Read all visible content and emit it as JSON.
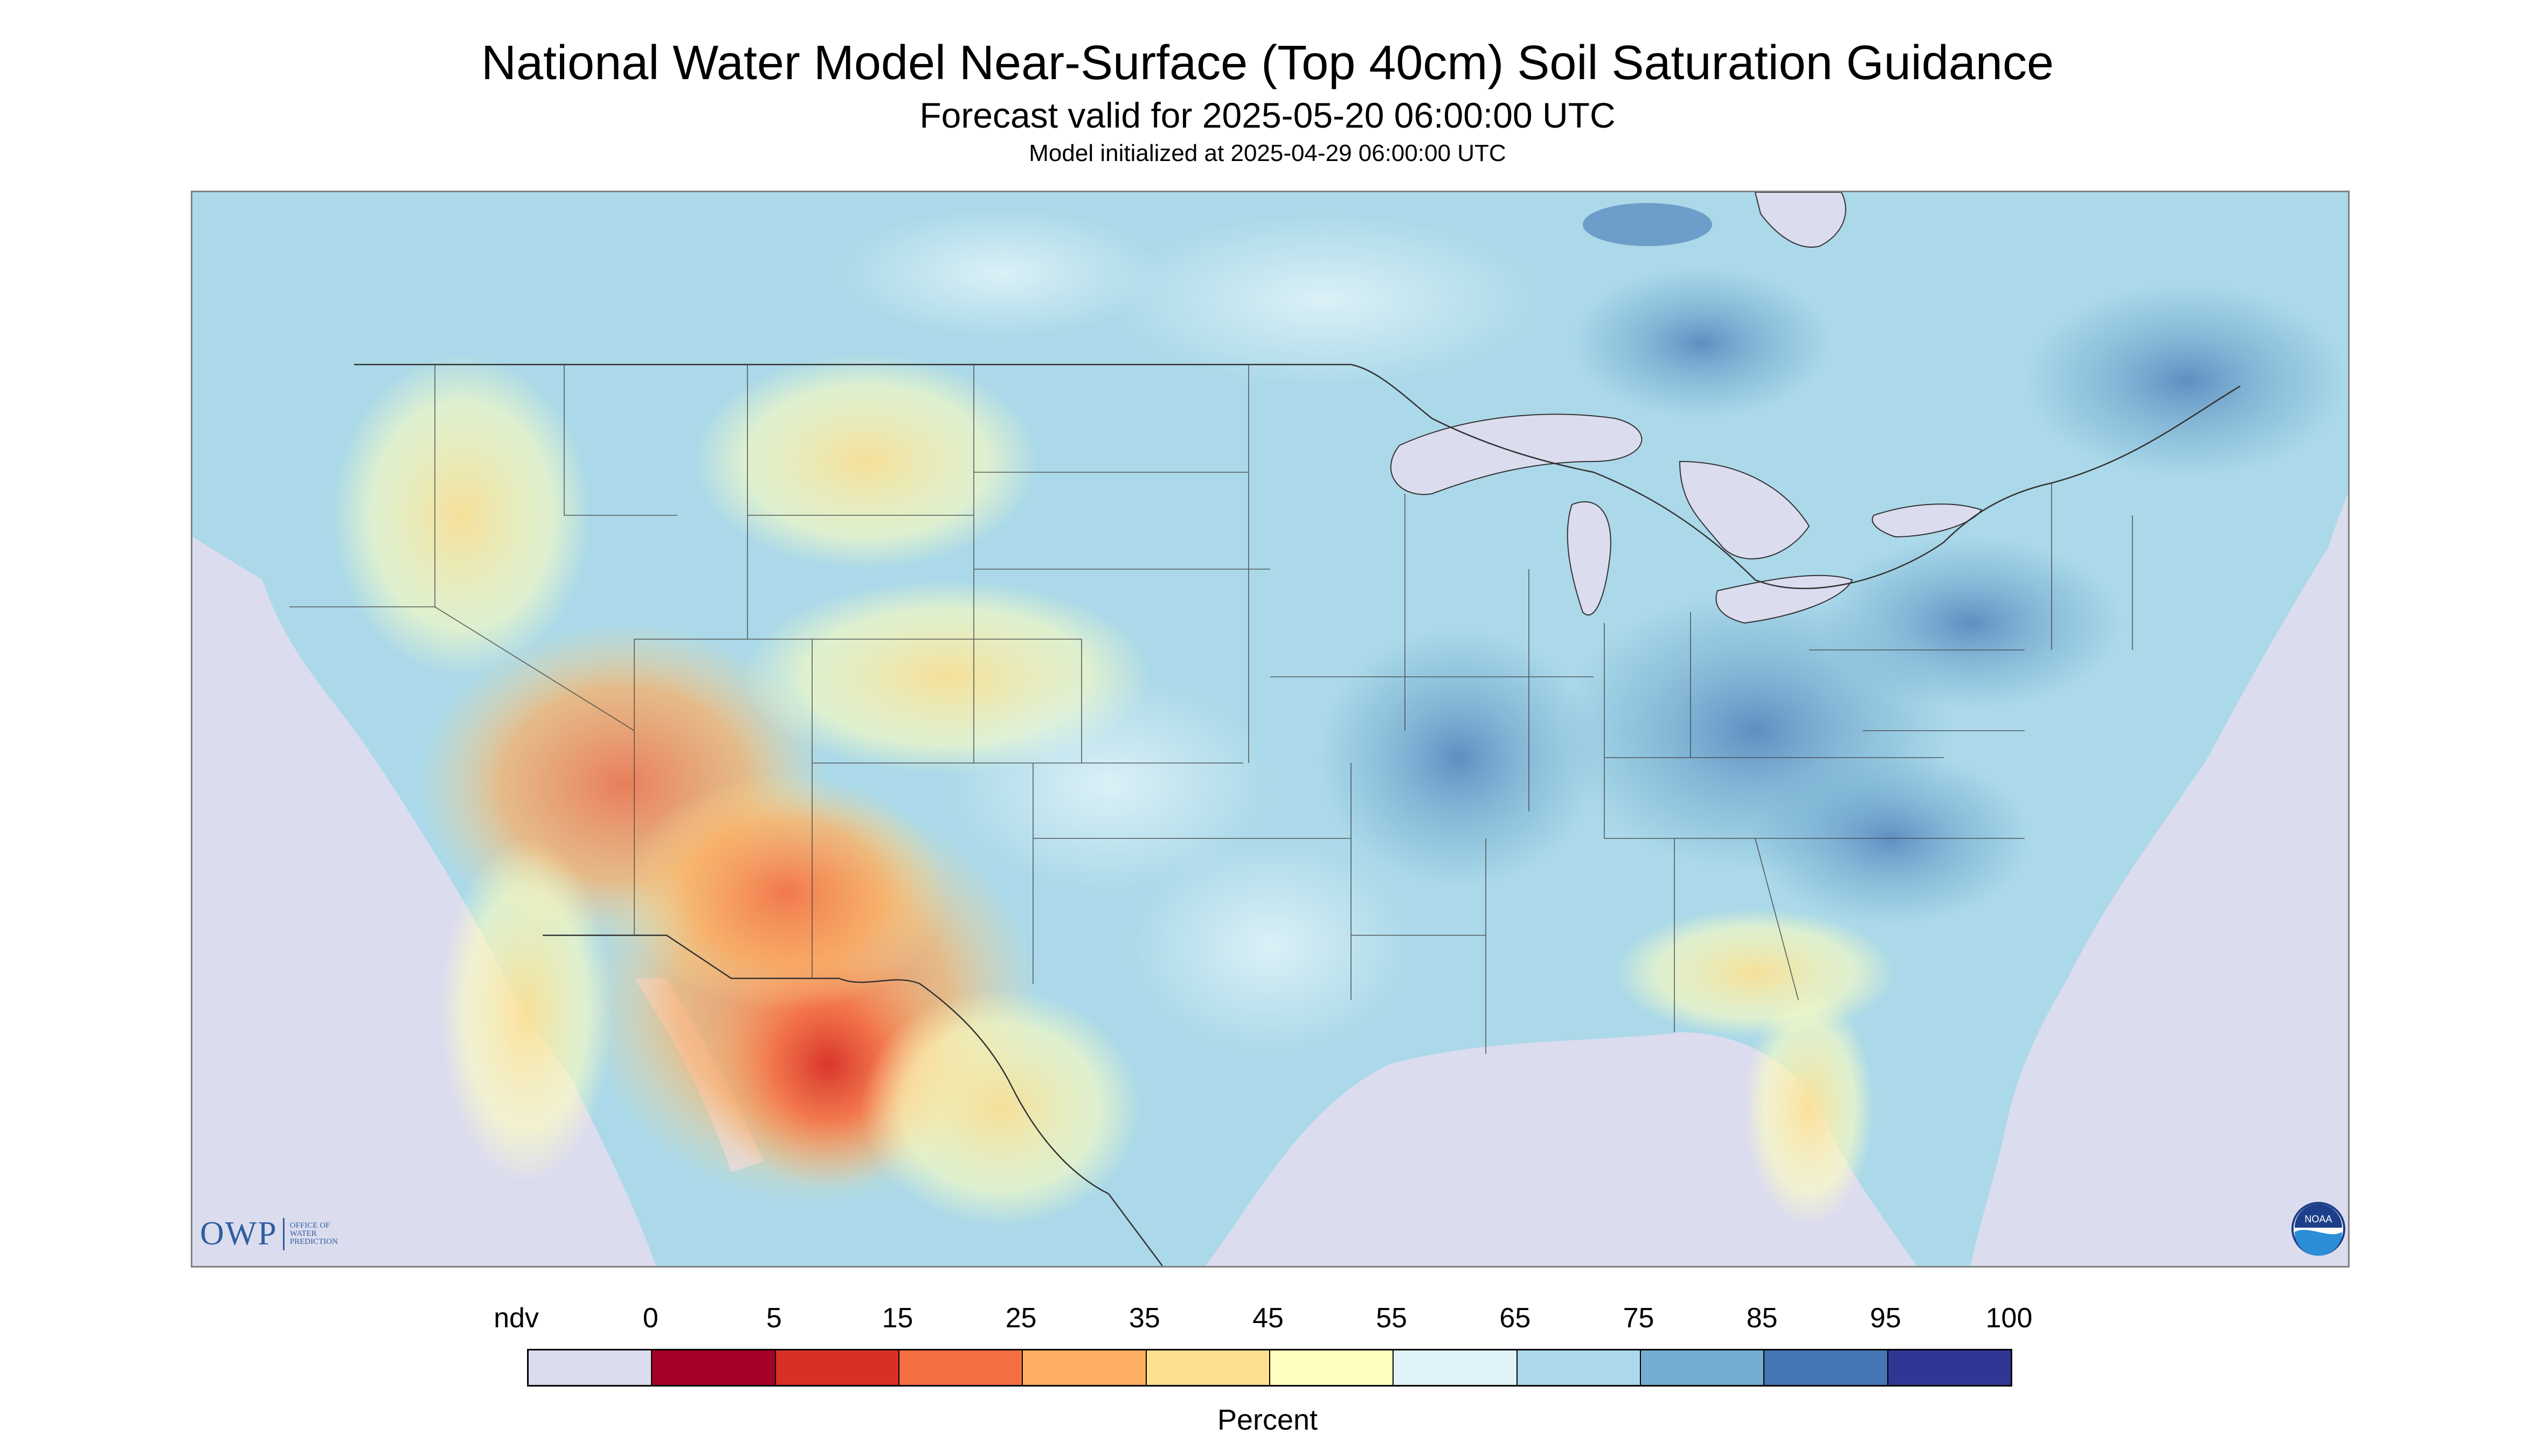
{
  "header": {
    "title": "National Water Model Near-Surface (Top 40cm) Soil Saturation Guidance",
    "subtitle": "Forecast valid for 2025-05-20 06:00:00 UTC",
    "init": "Model initialized at 2025-04-29 06:00:00 UTC"
  },
  "logos": {
    "owp_main": "OWP",
    "owp_sub": [
      "OFFICE OF",
      "WATER",
      "PREDICTION"
    ],
    "noaa": "NOAA"
  },
  "legend": {
    "unit": "Percent",
    "labels": [
      "ndv",
      "0",
      "5",
      "15",
      "25",
      "35",
      "45",
      "55",
      "65",
      "75",
      "85",
      "95",
      "100"
    ],
    "colors": [
      "#dcdcef",
      "#a50026",
      "#d73027",
      "#f46d43",
      "#fdae61",
      "#fee090",
      "#ffffbf",
      "#e0f3f8",
      "#abd9e9",
      "#74add1",
      "#4575b4",
      "#313695"
    ]
  },
  "colors": {
    "ndv": "#dcdcef",
    "lake": "#dcdcef",
    "border": "#333333"
  }
}
